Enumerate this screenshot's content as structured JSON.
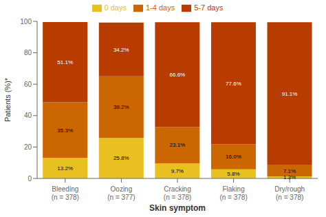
{
  "chart_data": {
    "type": "bar",
    "stacked": true,
    "data_labels": true,
    "grid": false,
    "legend": "top",
    "xlabel": "Skin symptom",
    "ylabel": "Patients (%)*",
    "categories": [
      "Bleeding\n(n = 378)",
      "Oozing\n(n = 377)",
      "Cracking\n(n = 378)",
      "Flaking\n(n = 378)",
      "Dry/rough\n(n = 378)"
    ],
    "series": [
      {
        "name": "0 days",
        "color": "#E8C020",
        "values": [
          13.2,
          25.8,
          9.7,
          5.8,
          1.3
        ],
        "value_labels": [
          "13.2%",
          "25.8%",
          "9.7%",
          "5.8%",
          "1.3%"
        ]
      },
      {
        "name": "1-4 days",
        "color": "#CC6600",
        "values": [
          35.3,
          39.2,
          23.1,
          16.0,
          7.1
        ],
        "value_labels": [
          "35.3%",
          "39.2%",
          "23.1%",
          "16.0%",
          "7.1%"
        ]
      },
      {
        "name": "5-7 days",
        "color": "#B83C00",
        "values": [
          51.1,
          34.2,
          66.6,
          77.6,
          91.1
        ],
        "value_labels": [
          "51.1%",
          "34.2%",
          "66.6%",
          "77.6%",
          "91.1%"
        ]
      }
    ],
    "ylim": [
      0,
      100
    ],
    "yticks": [
      0,
      20,
      40,
      60,
      80,
      100
    ]
  }
}
